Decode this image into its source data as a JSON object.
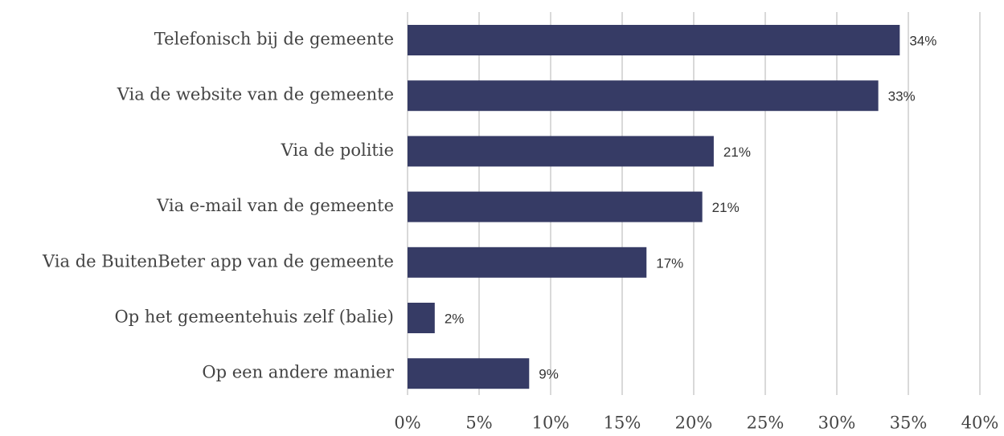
{
  "chart_data": {
    "type": "bar",
    "orientation": "horizontal",
    "categories": [
      "Telefonisch bij de gemeente",
      "Via de website van de gemeente",
      "Via de politie",
      "Via e-mail van de gemeente",
      "Via de BuitenBeter app van de gemeente",
      "Op het gemeentehuis zelf (balie)",
      "Op een andere manier"
    ],
    "values": [
      34.4,
      32.9,
      21.4,
      20.6,
      16.7,
      1.9,
      8.5
    ],
    "value_labels": [
      "34%",
      "33%",
      "21%",
      "21%",
      "17%",
      "2%",
      "9%"
    ],
    "color": "#363b65",
    "xlim": [
      0,
      40
    ],
    "xticks": [
      {
        "value": 0,
        "label": "0%"
      },
      {
        "value": 5,
        "label": "5%"
      },
      {
        "value": 10,
        "label": "10%"
      },
      {
        "value": 15,
        "label": "15%"
      },
      {
        "value": 20,
        "label": "20%"
      },
      {
        "value": 25,
        "label": "25%"
      },
      {
        "value": 30,
        "label": "30%"
      },
      {
        "value": 35,
        "label": "35%"
      },
      {
        "value": 40,
        "label": "40%"
      }
    ],
    "grid": true
  }
}
